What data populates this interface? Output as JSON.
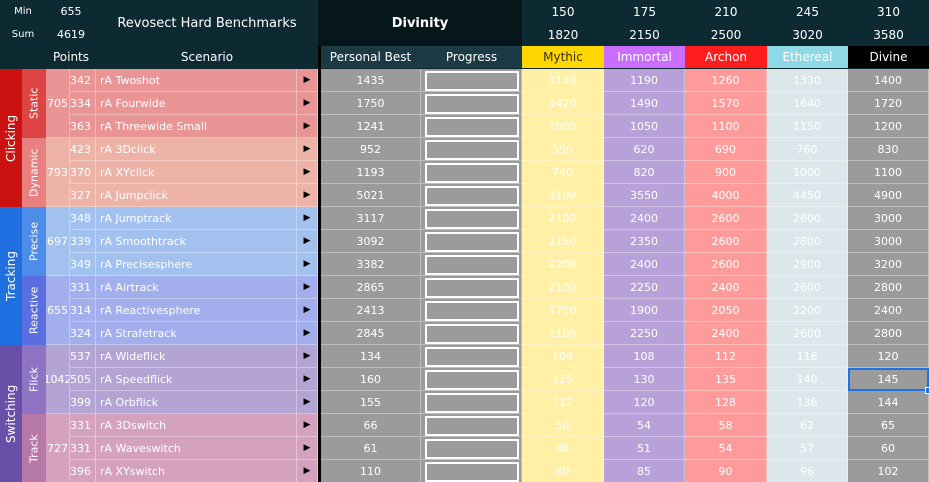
{
  "header": {
    "min_label": "Min",
    "min_value": "655",
    "sum_label": "Sum",
    "sum_value": "4619",
    "title": "Revosect Hard Benchmarks",
    "rank_title": "Divinity",
    "rank_mins": [
      "150",
      "175",
      "210",
      "245",
      "310"
    ],
    "rank_sums": [
      "1820",
      "2150",
      "2500",
      "3020",
      "3580"
    ]
  },
  "columns": {
    "points": "Points",
    "scenario": "Scenario",
    "personal_best": "Personal Best",
    "progress": "Progress"
  },
  "ranks": [
    {
      "name": "Mythic",
      "header_bg": "#ffd700",
      "header_fg": "#3a2f00",
      "cell_bg": "#fff0a6"
    },
    {
      "name": "Immortal",
      "header_bg": "#c96dff",
      "header_fg": "#ffffff",
      "cell_bg": "#b8a0d8"
    },
    {
      "name": "Archon",
      "header_bg": "#ff1e1e",
      "header_fg": "#ffffff",
      "cell_bg": "#ff9a9a"
    },
    {
      "name": "Ethereal",
      "header_bg": "#8fd8e6",
      "header_fg": "#ffffff",
      "cell_bg": "#dbe7ea"
    },
    {
      "name": "Divine",
      "header_bg": "#000000",
      "header_fg": "#ffffff",
      "cell_bg": "#9b9b9b"
    }
  ],
  "categories": [
    {
      "name": "Clicking",
      "color": "#cc1111",
      "subcategories": [
        {
          "name": "Static",
          "color": "#dd4444",
          "row_color": "#ea9595",
          "points": "705",
          "scenarios": [
            {
              "points": "342",
              "name": "rA Twoshot",
              "pb": "1435",
              "progress": 0,
              "ranks": [
                "1120",
                "1190",
                "1260",
                "1330",
                "1400"
              ]
            },
            {
              "points": "334",
              "name": "rA Fourwide",
              "pb": "1750",
              "progress": 0,
              "ranks": [
                "1420",
                "1490",
                "1570",
                "1640",
                "1720"
              ]
            },
            {
              "points": "363",
              "name": "rA Threewide Small",
              "pb": "1241",
              "progress": 0,
              "ranks": [
                "1000",
                "1050",
                "1100",
                "1150",
                "1200"
              ]
            }
          ]
        },
        {
          "name": "Dynamic",
          "color": "#e88080",
          "row_color": "#ecb3a6",
          "points": "793",
          "scenarios": [
            {
              "points": "423",
              "name": "rA 3Dclick",
              "pb": "952",
              "progress": 0,
              "ranks": [
                "550",
                "620",
                "690",
                "760",
                "830"
              ]
            },
            {
              "points": "370",
              "name": "rA XYclick",
              "pb": "1193",
              "progress": 0,
              "ranks": [
                "740",
                "820",
                "900",
                "1000",
                "1100"
              ]
            },
            {
              "points": "327",
              "name": "rA Jumpclick",
              "pb": "5021",
              "progress": 0,
              "ranks": [
                "3100",
                "3550",
                "4000",
                "4450",
                "4900"
              ]
            }
          ]
        }
      ]
    },
    {
      "name": "Tracking",
      "color": "#1f6fe0",
      "subcategories": [
        {
          "name": "Precise",
          "color": "#4d8ce8",
          "row_color": "#a2c1ee",
          "points": "697",
          "scenarios": [
            {
              "points": "348",
              "name": "rA Jumptrack",
              "pb": "3117",
              "progress": 0,
              "ranks": [
                "2100",
                "2400",
                "2600",
                "2800",
                "3000"
              ]
            },
            {
              "points": "339",
              "name": "rA Smoothtrack",
              "pb": "3092",
              "progress": 0,
              "ranks": [
                "2150",
                "2350",
                "2600",
                "2800",
                "3000"
              ]
            },
            {
              "points": "349",
              "name": "rA Precisesphere",
              "pb": "3382",
              "progress": 0,
              "ranks": [
                "2200",
                "2400",
                "2600",
                "2900",
                "3200"
              ]
            }
          ]
        },
        {
          "name": "Reactive",
          "color": "#5a6ee0",
          "row_color": "#a3aeec",
          "points": "655",
          "scenarios": [
            {
              "points": "331",
              "name": "rA Airtrack",
              "pb": "2865",
              "progress": 0,
              "ranks": [
                "2100",
                "2250",
                "2400",
                "2600",
                "2800"
              ]
            },
            {
              "points": "314",
              "name": "rA Reactivesphere",
              "pb": "2413",
              "progress": 0,
              "ranks": [
                "1750",
                "1900",
                "2050",
                "2200",
                "2400"
              ]
            },
            {
              "points": "324",
              "name": "rA Strafetrack",
              "pb": "2845",
              "progress": 0,
              "ranks": [
                "2100",
                "2250",
                "2400",
                "2600",
                "2800"
              ]
            }
          ]
        }
      ]
    },
    {
      "name": "Switching",
      "color": "#6a4fa8",
      "subcategories": [
        {
          "name": "Flick",
          "color": "#8f74c4",
          "row_color": "#b4a4d3",
          "points": "1042",
          "scenarios": [
            {
              "points": "537",
              "name": "rA Wideflick",
              "pb": "134",
              "progress": 0,
              "ranks": [
                "104",
                "108",
                "112",
                "116",
                "120"
              ]
            },
            {
              "points": "505",
              "name": "rA Speedflick",
              "pb": "160",
              "progress": 0,
              "ranks": [
                "125",
                "130",
                "135",
                "140",
                "145"
              ]
            },
            {
              "points": "399",
              "name": "rA Orbflick",
              "pb": "155",
              "progress": 0,
              "ranks": [
                "112",
                "120",
                "128",
                "136",
                "144"
              ]
            }
          ]
        },
        {
          "name": "Track",
          "color": "#b778a8",
          "row_color": "#d4a2bf",
          "points": "727",
          "scenarios": [
            {
              "points": "331",
              "name": "rA 3Dswitch",
              "pb": "66",
              "progress": 0,
              "ranks": [
                "50",
                "54",
                "58",
                "62",
                "65"
              ]
            },
            {
              "points": "331",
              "name": "rA Waveswitch",
              "pb": "61",
              "progress": 0,
              "ranks": [
                "48",
                "51",
                "54",
                "57",
                "60"
              ]
            },
            {
              "points": "396",
              "name": "rA XYswitch",
              "pb": "110",
              "progress": 0,
              "ranks": [
                "80",
                "85",
                "90",
                "96",
                "102"
              ]
            }
          ]
        }
      ]
    }
  ],
  "play_icon": "▶",
  "colors": {
    "header_bg": "#0d2a32",
    "pb_bg": "#9b9b9b",
    "selection": "#1a73e8"
  }
}
